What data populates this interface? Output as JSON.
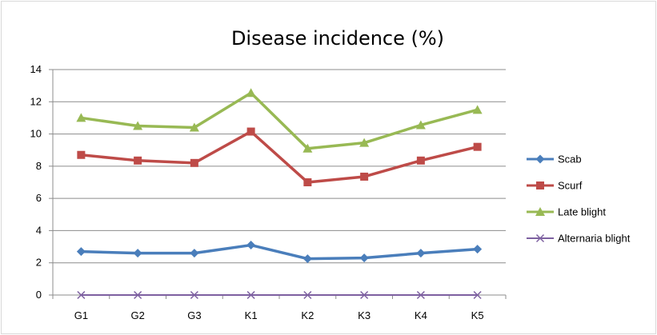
{
  "chart_data": {
    "type": "line",
    "title": "Disease incidence (%)",
    "xlabel": "",
    "ylabel": "",
    "categories": [
      "G1",
      "G2",
      "G3",
      "K1",
      "K2",
      "K3",
      "K4",
      "K5"
    ],
    "ylim": [
      0,
      14
    ],
    "yticks": [
      0,
      2,
      4,
      6,
      8,
      10,
      12,
      14
    ],
    "grid": true,
    "legend_position": "right",
    "series": [
      {
        "name": "Scab",
        "color": "#4a7ebb",
        "marker": "diamond",
        "values": [
          2.7,
          2.6,
          2.6,
          3.1,
          2.25,
          2.3,
          2.6,
          2.85
        ]
      },
      {
        "name": "Scurf",
        "color": "#be4b48",
        "marker": "square",
        "values": [
          8.7,
          8.35,
          8.2,
          10.15,
          7.0,
          7.35,
          8.35,
          9.2
        ]
      },
      {
        "name": "Late blight",
        "color": "#98b954",
        "marker": "triangle",
        "values": [
          11.0,
          10.5,
          10.4,
          12.55,
          9.1,
          9.45,
          10.55,
          11.5
        ]
      },
      {
        "name": "Alternaria blight",
        "color": "#7d60a0",
        "marker": "x",
        "values": [
          0,
          0,
          0,
          0,
          0,
          0,
          0,
          0
        ]
      }
    ]
  }
}
